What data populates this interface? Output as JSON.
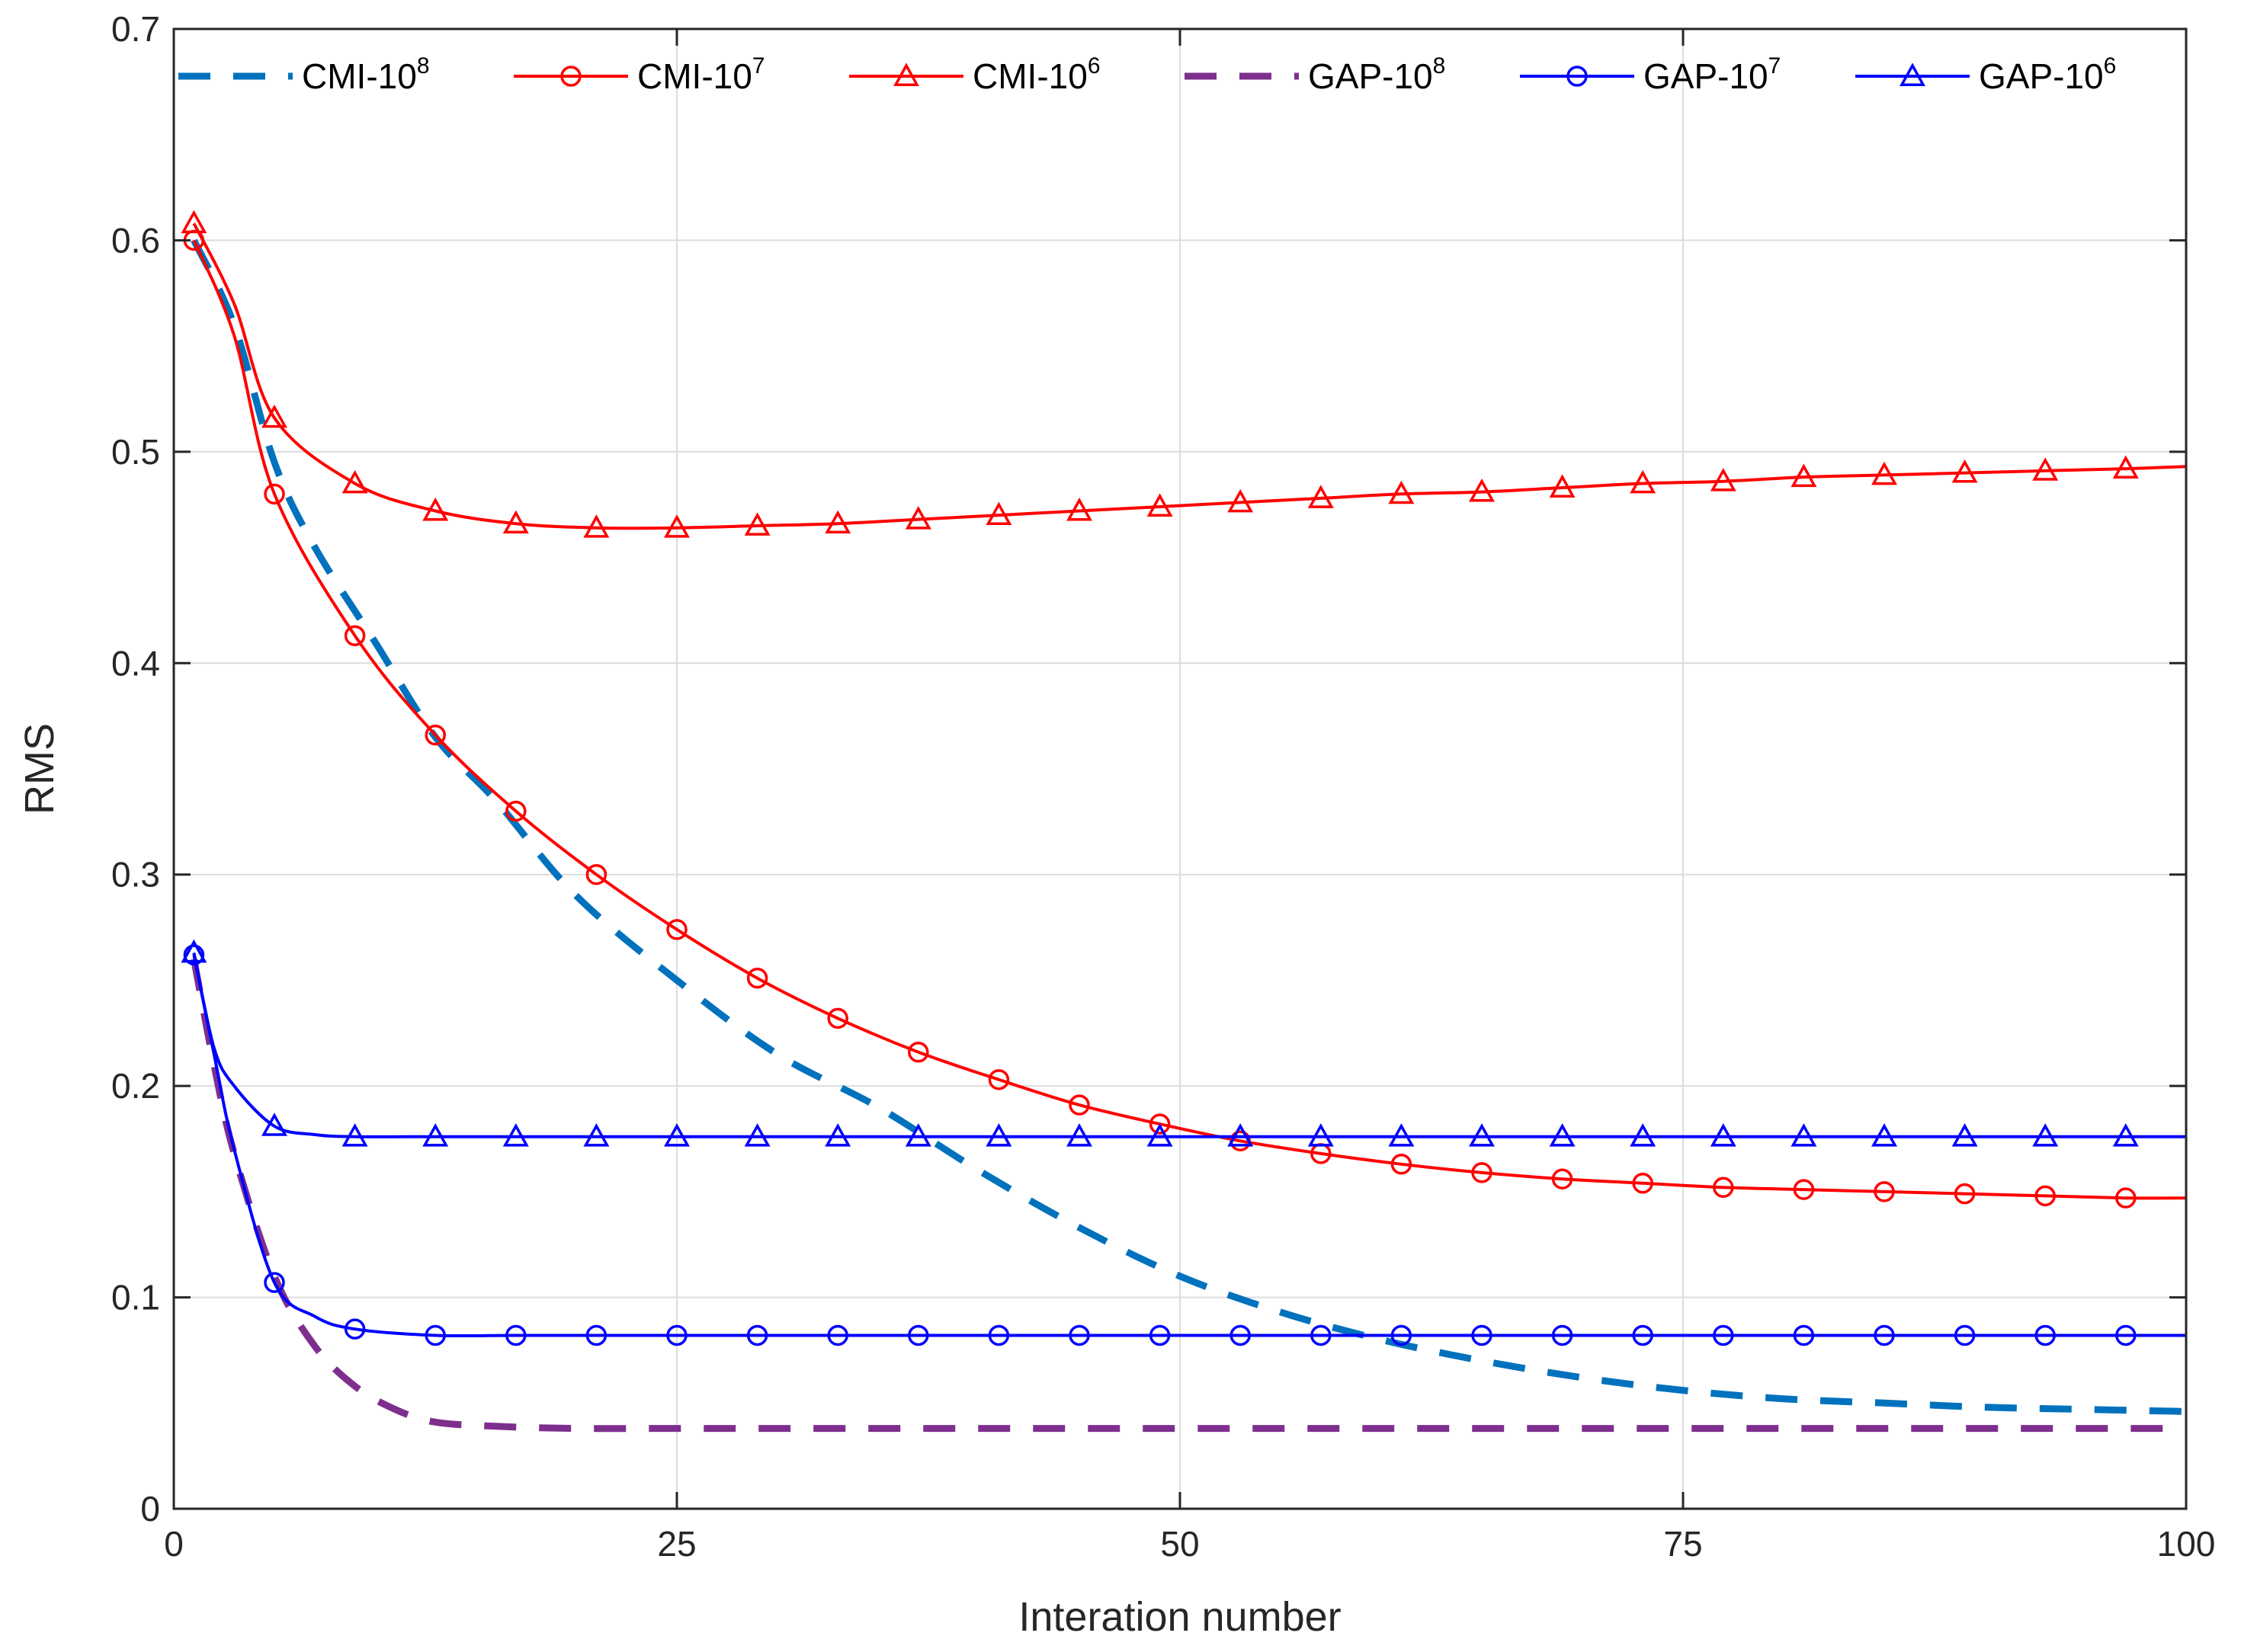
{
  "chart_data": {
    "type": "line",
    "title": "",
    "xlabel": "Interation number",
    "ylabel": "RMS",
    "xlim": [
      0,
      100
    ],
    "ylim": [
      0,
      0.7
    ],
    "xticks": [
      0,
      25,
      50,
      75,
      100
    ],
    "xtick_labels": [
      "0",
      "25",
      "50",
      "75",
      "100"
    ],
    "yticks": [
      0,
      0.1,
      0.2,
      0.3,
      0.4,
      0.5,
      0.6,
      0.7
    ],
    "ytick_labels": [
      "0",
      "0.1",
      "0.2",
      "0.3",
      "0.4",
      "0.5",
      "0.6",
      "0.7"
    ],
    "grid": true,
    "legend_position": "top",
    "marker_x": [
      1,
      5,
      9,
      13,
      17,
      21,
      25,
      29,
      33,
      37,
      41,
      45,
      49,
      53,
      57,
      61,
      65,
      69,
      73,
      77,
      81,
      85,
      89,
      93,
      97
    ],
    "series": [
      {
        "name": "CMI-10^8",
        "label_base": "CMI-10",
        "label_exp": "8",
        "color": "#0072bd",
        "style": "dashed",
        "marker": "none",
        "x": [
          1,
          3,
          5,
          7,
          10,
          13,
          16,
          20,
          25,
          30,
          35,
          40,
          45,
          50,
          55,
          60,
          65,
          70,
          75,
          80,
          85,
          90,
          95,
          100
        ],
        "values": [
          0.6,
          0.56,
          0.495,
          0.455,
          0.41,
          0.365,
          0.335,
          0.29,
          0.25,
          0.215,
          0.19,
          0.16,
          0.133,
          0.11,
          0.093,
          0.08,
          0.07,
          0.062,
          0.056,
          0.052,
          0.05,
          0.048,
          0.047,
          0.046
        ]
      },
      {
        "name": "CMI-10^7",
        "label_base": "CMI-10",
        "label_exp": "7",
        "color": "#ff0000",
        "style": "solid",
        "marker": "circle",
        "x": [
          1,
          3,
          5,
          9,
          13,
          17,
          21,
          25,
          29,
          33,
          37,
          41,
          45,
          49,
          53,
          57,
          61,
          65,
          69,
          73,
          77,
          81,
          85,
          89,
          93,
          97,
          100
        ],
        "values": [
          0.6,
          0.555,
          0.48,
          0.413,
          0.366,
          0.33,
          0.3,
          0.274,
          0.251,
          0.232,
          0.216,
          0.203,
          0.191,
          0.182,
          0.174,
          0.168,
          0.163,
          0.159,
          0.156,
          0.154,
          0.152,
          0.151,
          0.15,
          0.149,
          0.148,
          0.147,
          0.147
        ]
      },
      {
        "name": "CMI-10^6",
        "label_base": "CMI-10",
        "label_exp": "6",
        "color": "#ff0000",
        "style": "solid",
        "marker": "triangle",
        "x": [
          1,
          3,
          5,
          9,
          13,
          17,
          21,
          25,
          29,
          33,
          37,
          41,
          45,
          49,
          53,
          57,
          61,
          65,
          69,
          73,
          77,
          81,
          85,
          89,
          93,
          97,
          100
        ],
        "values": [
          0.608,
          0.57,
          0.516,
          0.485,
          0.472,
          0.466,
          0.464,
          0.464,
          0.465,
          0.466,
          0.468,
          0.47,
          0.472,
          0.474,
          0.476,
          0.478,
          0.48,
          0.481,
          0.483,
          0.485,
          0.486,
          0.488,
          0.489,
          0.49,
          0.491,
          0.492,
          0.493
        ]
      },
      {
        "name": "GAP-10^8",
        "label_base": "GAP-10",
        "label_exp": "8",
        "color": "#7e2f8e",
        "style": "dashed",
        "marker": "none",
        "x": [
          1,
          2,
          3,
          5,
          7,
          9,
          11,
          13,
          16,
          20,
          25,
          30,
          40,
          50,
          60,
          70,
          80,
          90,
          100
        ],
        "values": [
          0.26,
          0.21,
          0.168,
          0.11,
          0.077,
          0.058,
          0.047,
          0.041,
          0.039,
          0.038,
          0.038,
          0.038,
          0.038,
          0.038,
          0.038,
          0.038,
          0.038,
          0.038,
          0.038
        ]
      },
      {
        "name": "GAP-10^7",
        "label_base": "GAP-10",
        "label_exp": "7",
        "color": "#0000ff",
        "style": "solid",
        "marker": "circle",
        "x": [
          1,
          2,
          3,
          5,
          7,
          9,
          13,
          17,
          21,
          25,
          29,
          33,
          37,
          41,
          45,
          49,
          53,
          57,
          61,
          65,
          69,
          73,
          77,
          81,
          85,
          89,
          93,
          97,
          100
        ],
        "values": [
          0.262,
          0.215,
          0.17,
          0.107,
          0.091,
          0.085,
          0.082,
          0.082,
          0.082,
          0.082,
          0.082,
          0.082,
          0.082,
          0.082,
          0.082,
          0.082,
          0.082,
          0.082,
          0.082,
          0.082,
          0.082,
          0.082,
          0.082,
          0.082,
          0.082,
          0.082,
          0.082,
          0.082,
          0.082
        ]
      },
      {
        "name": "GAP-10^6",
        "label_base": "GAP-10",
        "label_exp": "6",
        "color": "#0000ff",
        "style": "solid",
        "marker": "triangle",
        "x": [
          1,
          2,
          3,
          5,
          7,
          9,
          13,
          17,
          21,
          25,
          29,
          33,
          37,
          41,
          45,
          49,
          53,
          57,
          61,
          65,
          69,
          73,
          77,
          81,
          85,
          89,
          93,
          97,
          100
        ],
        "values": [
          0.263,
          0.218,
          0.2,
          0.181,
          0.177,
          0.176,
          0.176,
          0.176,
          0.176,
          0.176,
          0.176,
          0.176,
          0.176,
          0.176,
          0.176,
          0.176,
          0.176,
          0.176,
          0.176,
          0.176,
          0.176,
          0.176,
          0.176,
          0.176,
          0.176,
          0.176,
          0.176,
          0.176,
          0.176
        ]
      }
    ]
  }
}
